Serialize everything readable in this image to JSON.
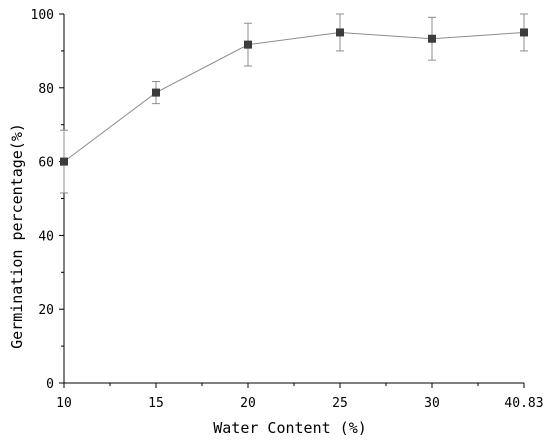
{
  "chart_data": {
    "type": "line",
    "title": "",
    "xlabel": "Water Content (%)",
    "ylabel": "Germination percentage(%)",
    "categories": [
      "10",
      "15",
      "20",
      "25",
      "30",
      "40.83"
    ],
    "series": [
      {
        "values": [
          60,
          78.7,
          91.7,
          95,
          93.3,
          95
        ],
        "error": [
          8.5,
          3,
          5.8,
          5,
          5.8,
          5
        ]
      }
    ],
    "ylim": [
      0,
      100
    ],
    "yticks": [
      "0",
      "20",
      "40",
      "60",
      "80",
      "100"
    ],
    "grid": false,
    "marker": "square",
    "colors": {
      "line": "#8c8c8c",
      "marker": "#3c3c3c",
      "error_bar": "#8c8c8c",
      "axis": "#000000"
    }
  }
}
